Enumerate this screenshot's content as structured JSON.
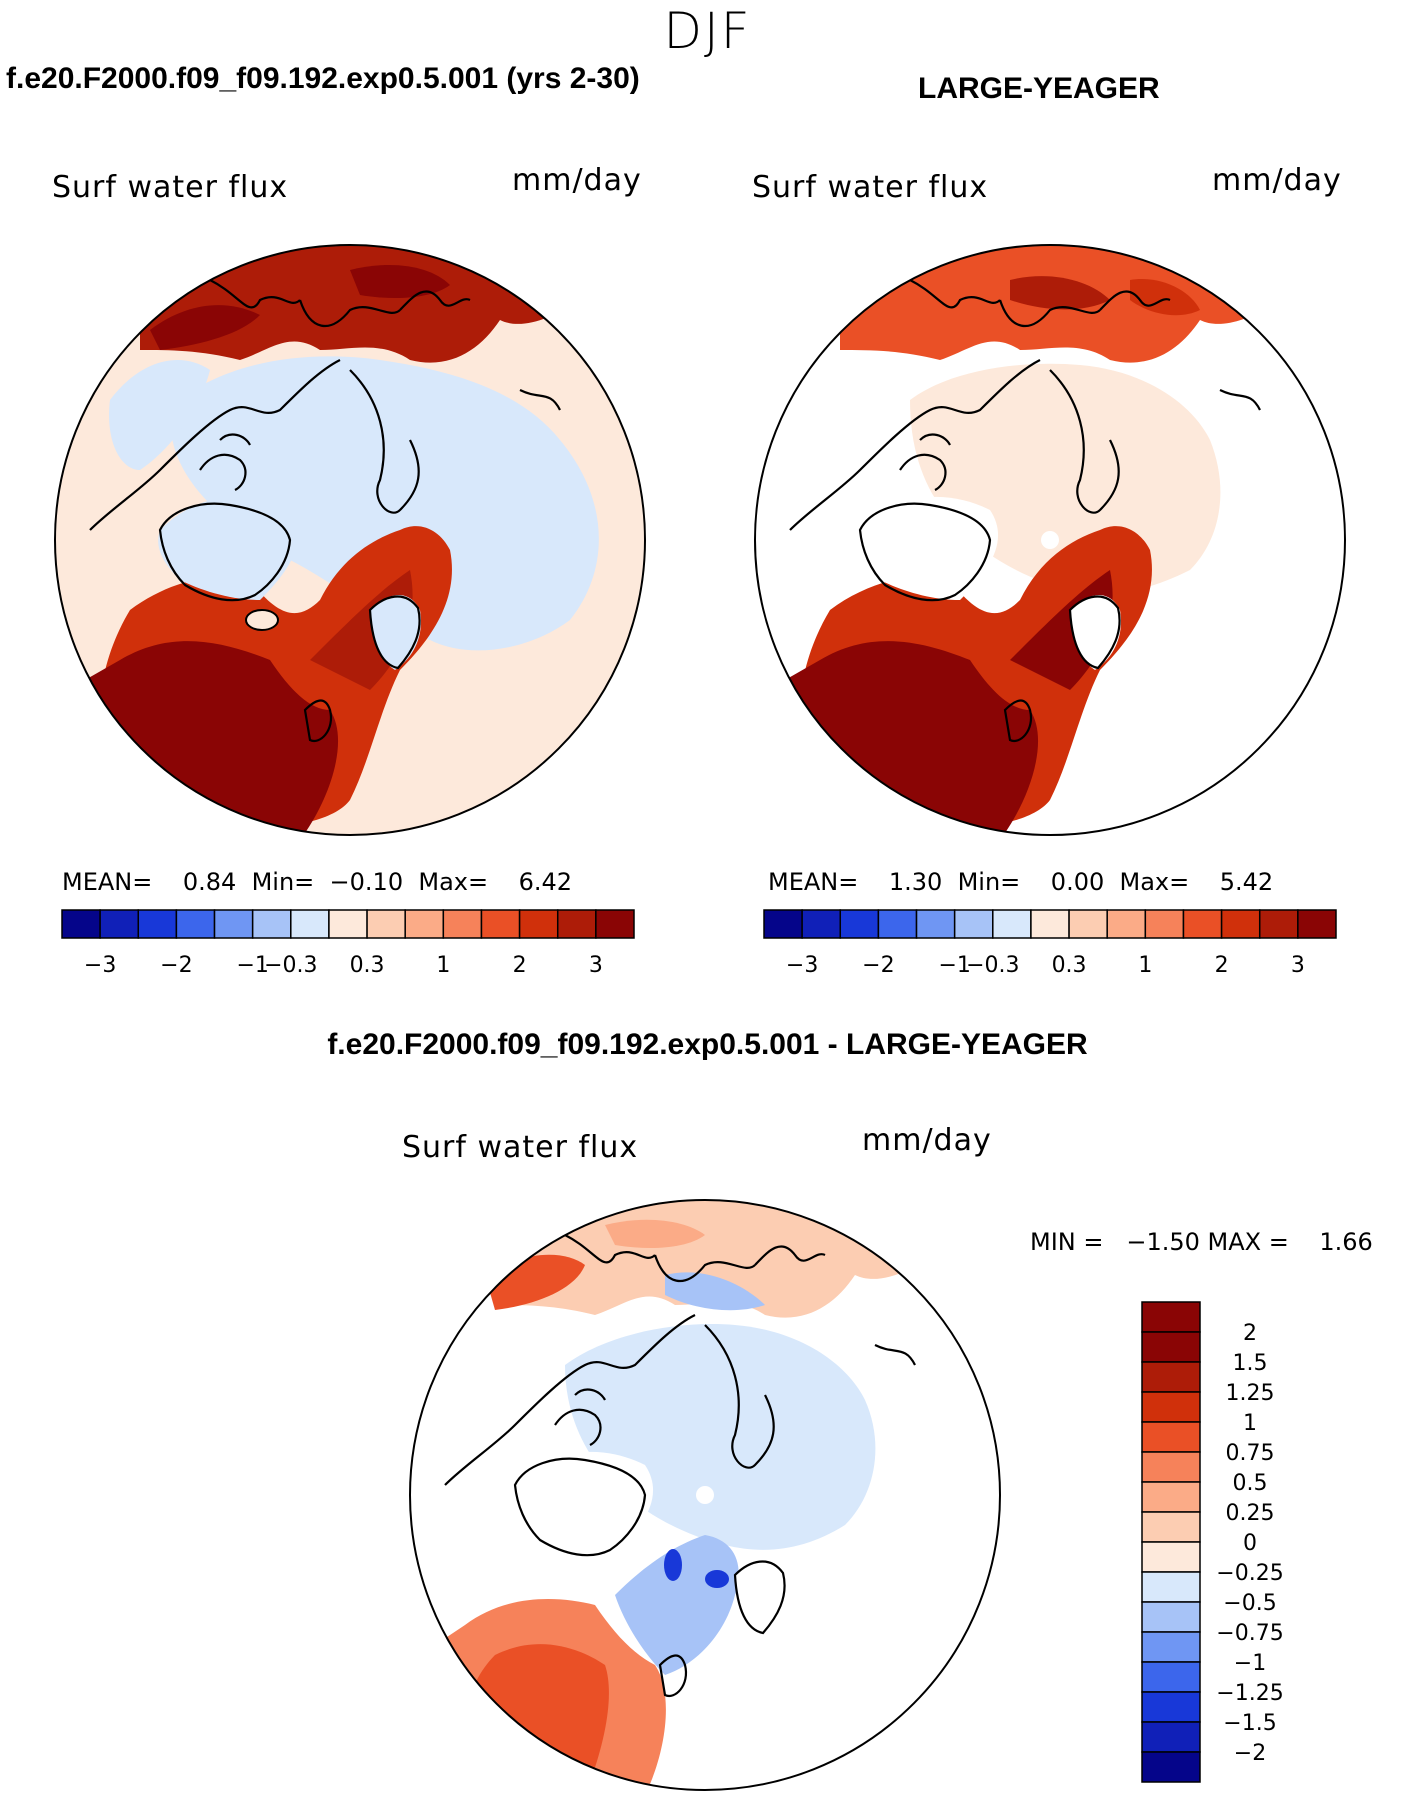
{
  "season": "DJF",
  "colors": {
    "palette": [
      "#05058a",
      "#1020b8",
      "#1838d8",
      "#3c66ec",
      "#6f96f3",
      "#a7c3f7",
      "#d8e8fb",
      "#fde9db",
      "#fccdb2",
      "#fbab87",
      "#f6825a",
      "#ea5026",
      "#d0300b",
      "#ad1c08",
      "#8a0505"
    ],
    "diff_palette": [
      "#05058a",
      "#1020b8",
      "#1838d8",
      "#3c66ec",
      "#6f96f3",
      "#a7c3f7",
      "#d8e8fb",
      "#fde9db",
      "#fccdb2",
      "#fbab87",
      "#f6825a",
      "#ea5026",
      "#d0300b",
      "#ad1c08",
      "#8a0505"
    ]
  },
  "panels": [
    {
      "case": "f.e20.F2000.f09_f09.192.exp0.5.001 (yrs 2-30)",
      "variable": "Surf water flux",
      "units": "mm/day",
      "stats": {
        "mean_label": "MEAN=",
        "mean": "0.84",
        "min_label": "Min=",
        "min": "−0.10",
        "max_label": "Max=",
        "max": "6.42"
      },
      "colorbar_ticks": [
        "−3",
        "−2",
        "−1",
        "−0.3",
        "0.3",
        "1",
        "2",
        "3"
      ]
    },
    {
      "case": "LARGE-YEAGER",
      "variable": "Surf water flux",
      "units": "mm/day",
      "stats": {
        "mean_label": "MEAN=",
        "mean": "1.30",
        "min_label": "Min=",
        "min": "0.00",
        "max_label": "Max=",
        "max": "5.42"
      },
      "colorbar_ticks": [
        "−3",
        "−2",
        "−1",
        "−0.3",
        "0.3",
        "1",
        "2",
        "3"
      ]
    }
  ],
  "difference": {
    "title": "f.e20.F2000.f09_f09.192.exp0.5.001 - LARGE-YEAGER",
    "variable": "Surf water flux",
    "units": "mm/day",
    "stats_text": "MIN =   −1.50 MAX =    1.66",
    "colorbar_labels": [
      "2",
      "1.5",
      "1.25",
      "1",
      "0.75",
      "0.5",
      "0.25",
      "0",
      "−0.25",
      "−0.5",
      "−0.75",
      "−1",
      "−1.25",
      "−1.5",
      "−2"
    ]
  }
}
